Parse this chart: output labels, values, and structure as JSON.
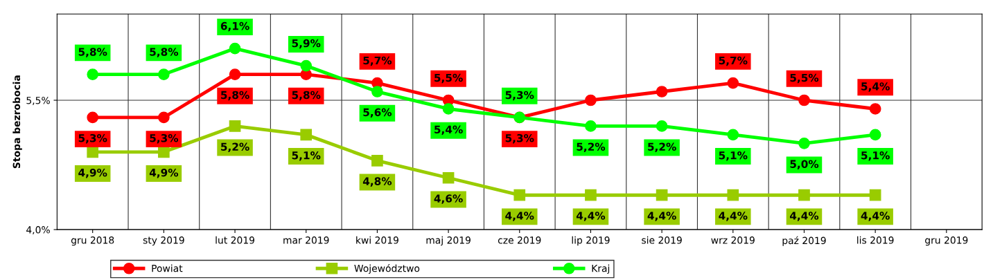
{
  "chart_data": {
    "type": "line",
    "ylabel": "Stopa bezrobocia",
    "categories": [
      "gru 2018",
      "sty 2019",
      "lut 2019",
      "mar 2019",
      "kwi 2019",
      "maj 2019",
      "cze 2019",
      "lip 2019",
      "sie 2019",
      "wrz 2019",
      "paź 2019",
      "lis 2019",
      "gru 2019"
    ],
    "series": [
      {
        "name": "Powiat",
        "color": "#ff0000",
        "marker": "circle",
        "values": [
          5.3,
          5.3,
          5.8,
          5.8,
          5.7,
          5.5,
          5.3,
          5.5,
          5.6,
          5.7,
          5.5,
          5.4,
          null
        ],
        "value_labels": [
          "5,3%",
          "5,3%",
          "5,8%",
          "5,8%",
          "5,7%",
          "5,5%",
          "5,3%",
          null,
          null,
          "5,7%",
          "5,5%",
          "5,4%",
          null
        ]
      },
      {
        "name": "Województwo",
        "color": "#99cc00",
        "marker": "square",
        "values": [
          4.9,
          4.9,
          5.2,
          5.1,
          4.8,
          4.6,
          4.4,
          4.4,
          4.4,
          4.4,
          4.4,
          4.4,
          null
        ],
        "value_labels": [
          "4,9%",
          "4,9%",
          "5,2%",
          "5,1%",
          "4,8%",
          "4,6%",
          "4,4%",
          "4,4%",
          "4,4%",
          "4,4%",
          "4,4%",
          "4,4%",
          null
        ]
      },
      {
        "name": "Kraj",
        "color": "#00ff00",
        "marker": "circle",
        "values": [
          5.8,
          5.8,
          6.1,
          5.9,
          5.6,
          5.4,
          5.3,
          5.2,
          5.2,
          5.1,
          5.0,
          5.1,
          null
        ],
        "value_labels": [
          "5,8%",
          "5,8%",
          "6,1%",
          "5,9%",
          "5,6%",
          "5,4%",
          "5,3%",
          "5,2%",
          "5,2%",
          "5,1%",
          "5,0%",
          "5,1%",
          null
        ]
      }
    ],
    "ylim": [
      4.0,
      6.5
    ],
    "yticks": [
      {
        "value": 4.0,
        "label": "4,0%"
      },
      {
        "value": 5.5,
        "label": "5,5%"
      }
    ],
    "grid": true,
    "legend": "bottom",
    "line_style": "solid"
  }
}
